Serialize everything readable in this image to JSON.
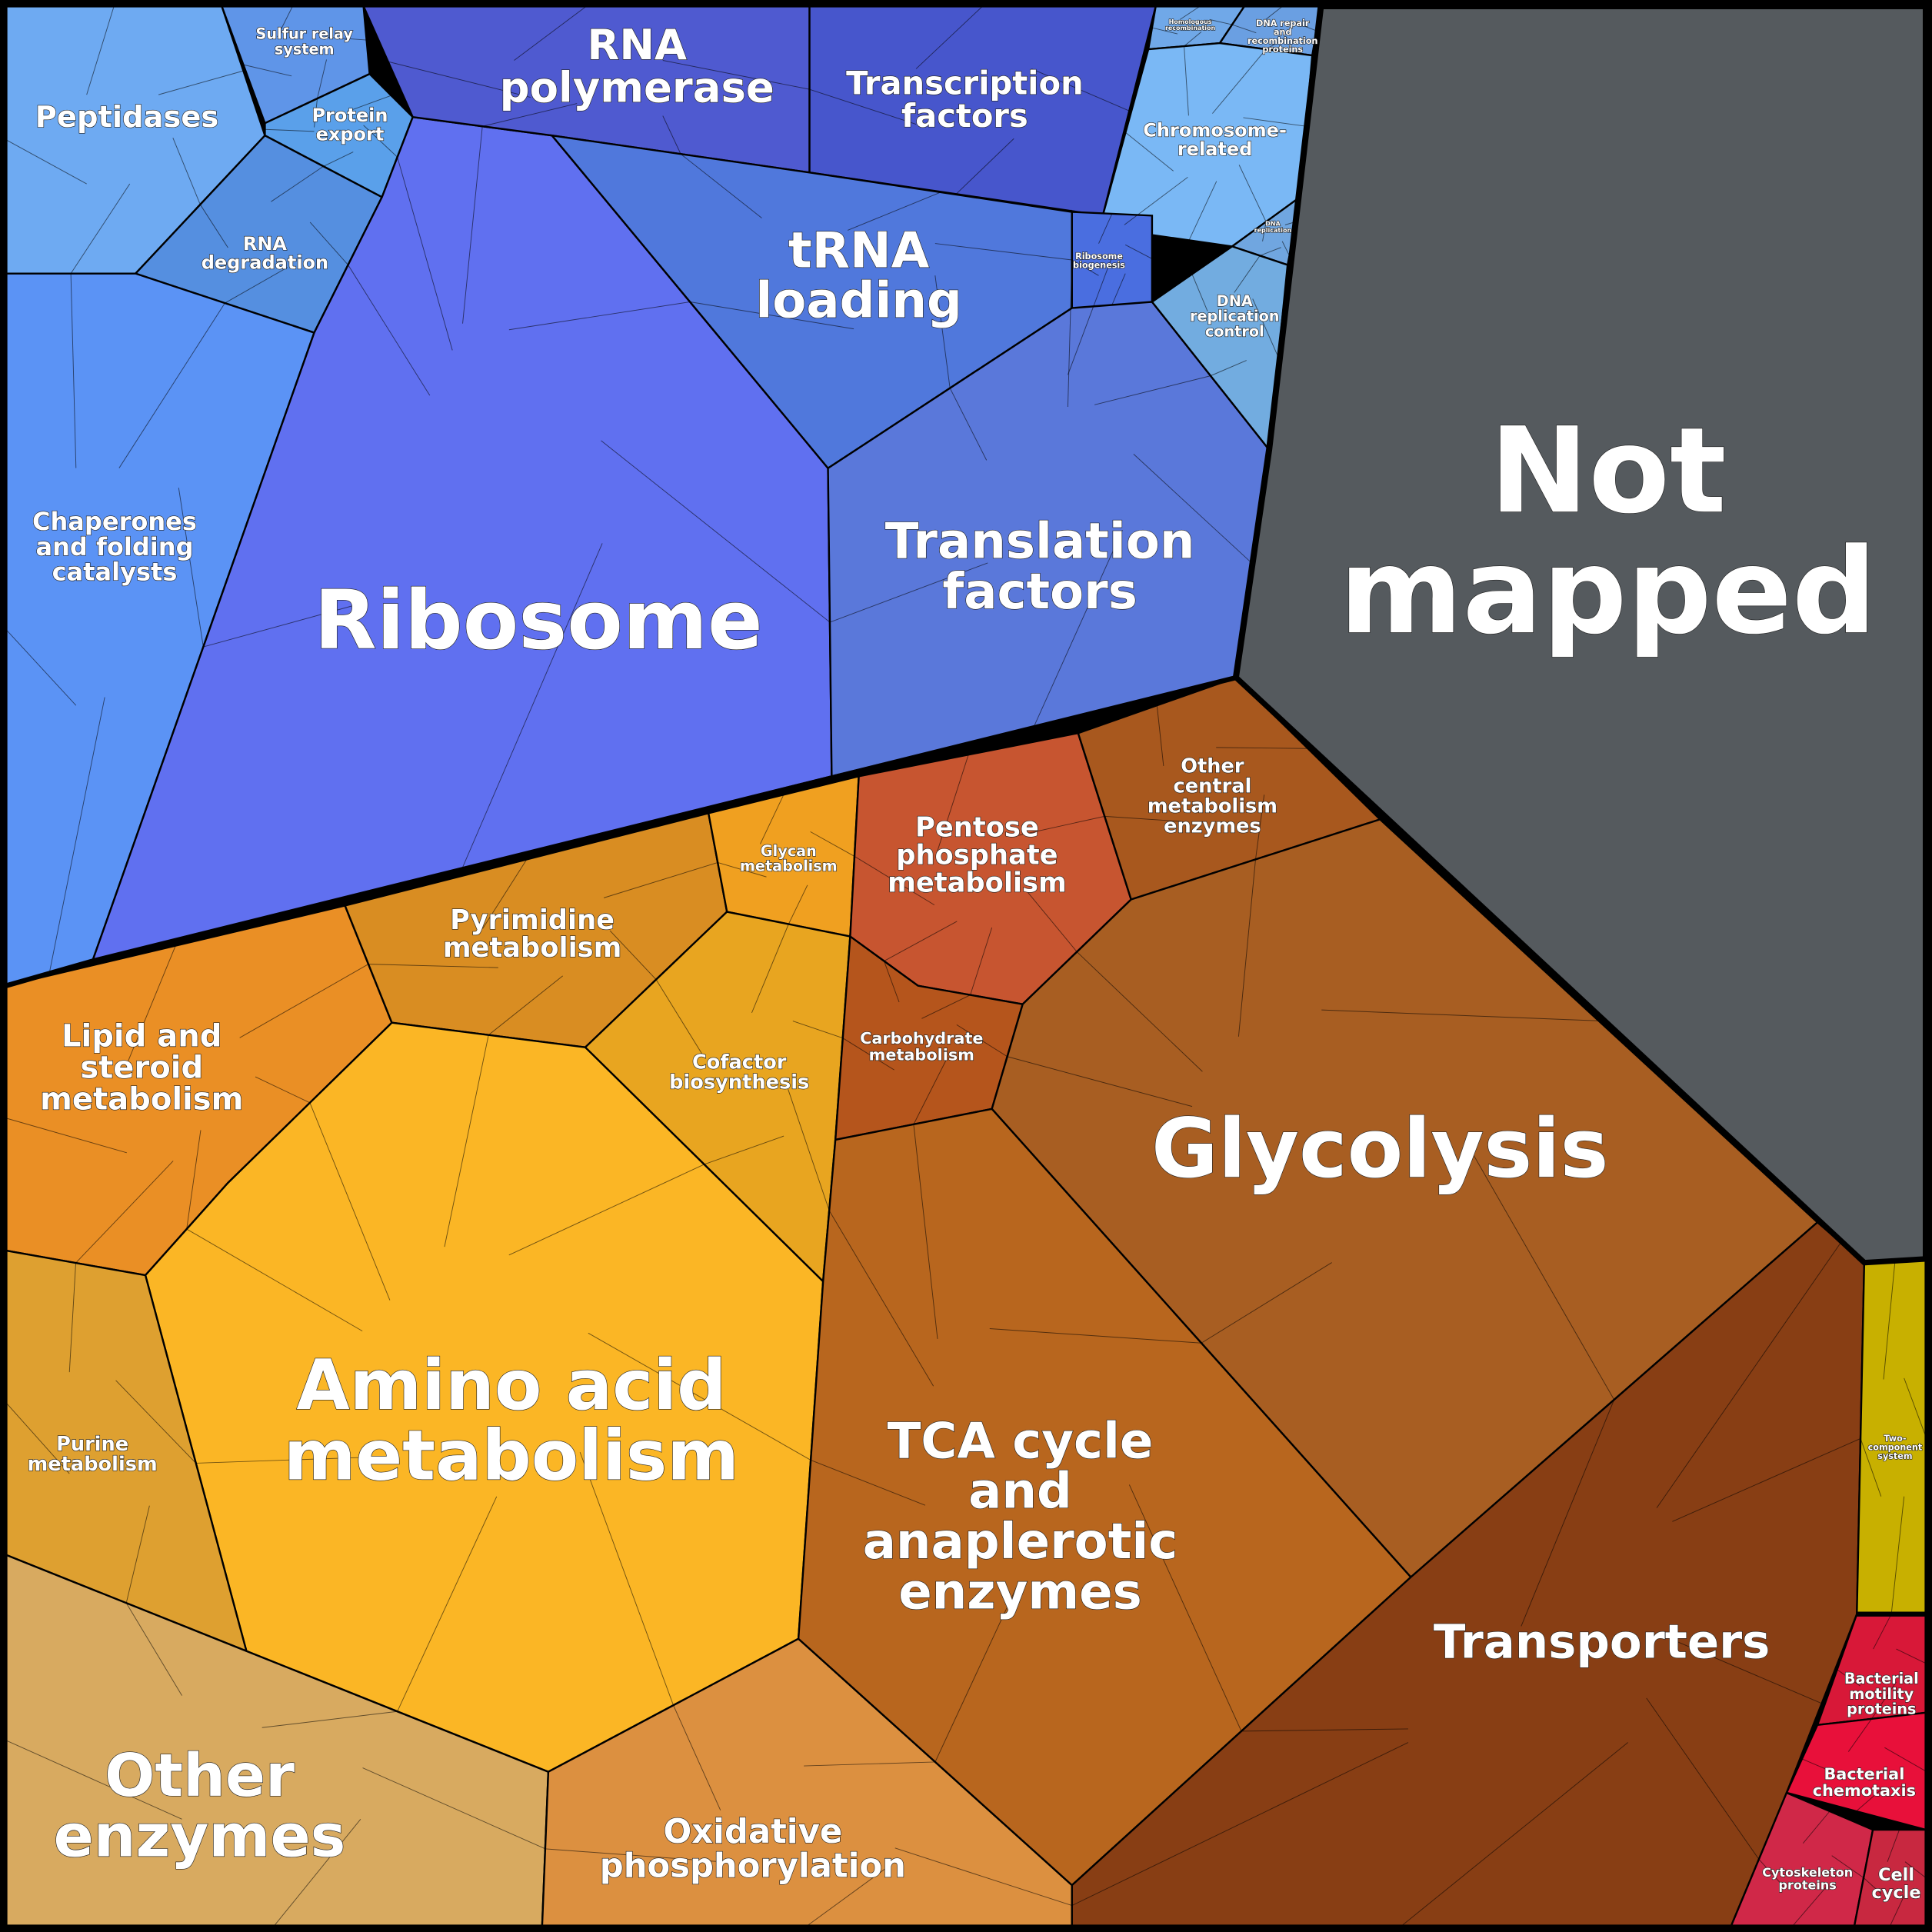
{
  "regions": [
    {
      "label": [
        "Peptidases"
      ]
    },
    {
      "label": [
        "Sulfur relay",
        "system"
      ]
    },
    {
      "label": [
        "Protein",
        "export"
      ]
    },
    {
      "label": [
        "RNA",
        "degradation"
      ]
    },
    {
      "label": [
        "Chaperones",
        "and folding",
        "catalysts"
      ]
    },
    {
      "label": [
        "Ribosome"
      ]
    },
    {
      "label": [
        "RNA",
        "polymerase"
      ]
    },
    {
      "label": [
        "Transcription",
        "factors"
      ]
    },
    {
      "label": [
        "tRNA",
        "loading"
      ]
    },
    {
      "label": [
        "Translation",
        "factors"
      ]
    },
    {
      "label": [
        "Homologous",
        "recombination"
      ]
    },
    {
      "label": [
        "DNA repair",
        "and",
        "recombination",
        "proteins"
      ]
    },
    {
      "label": [
        "Chromosome-",
        "related"
      ]
    },
    {
      "label": [
        "DNA",
        "replication"
      ]
    },
    {
      "label": [
        "Ribosome",
        "biogenesis"
      ]
    },
    {
      "label": [
        "DNA",
        "replication",
        "control"
      ]
    },
    {
      "label": [
        "Not",
        "mapped"
      ]
    },
    {
      "label": [
        "Lipid and",
        "steroid",
        "metabolism"
      ]
    },
    {
      "label": [
        "Pyrimidine",
        "metabolism"
      ]
    },
    {
      "label": [
        "Glycan",
        "metabolism"
      ]
    },
    {
      "label": [
        "Cofactor",
        "biosynthesis"
      ]
    },
    {
      "label": [
        "Amino acid",
        "metabolism"
      ]
    },
    {
      "label": [
        "Purine",
        "metabolism"
      ]
    },
    {
      "label": [
        "Other",
        "enzymes"
      ]
    },
    {
      "label": [
        "Oxidative",
        "phosphorylation"
      ]
    },
    {
      "label": [
        "Pentose",
        "phosphate",
        "metabolism"
      ]
    },
    {
      "label": [
        "Other",
        "central",
        "metabolism",
        "enzymes"
      ]
    },
    {
      "label": [
        "Carbohydrate",
        "metabolism"
      ]
    },
    {
      "label": [
        "Glycolysis"
      ]
    },
    {
      "label": [
        "TCA cycle",
        "and",
        "anaplerotic",
        "enzymes"
      ]
    },
    {
      "label": [
        "Transporters"
      ]
    },
    {
      "label": [
        "Two-",
        "component",
        "system"
      ]
    },
    {
      "label": [
        "Bacterial",
        "motility",
        "proteins"
      ]
    },
    {
      "label": [
        "Bacterial",
        "chemotaxis"
      ]
    },
    {
      "label": [
        "Cytoskeleton",
        "proteins"
      ]
    },
    {
      "label": [
        "Cell",
        "cycle"
      ]
    }
  ]
}
